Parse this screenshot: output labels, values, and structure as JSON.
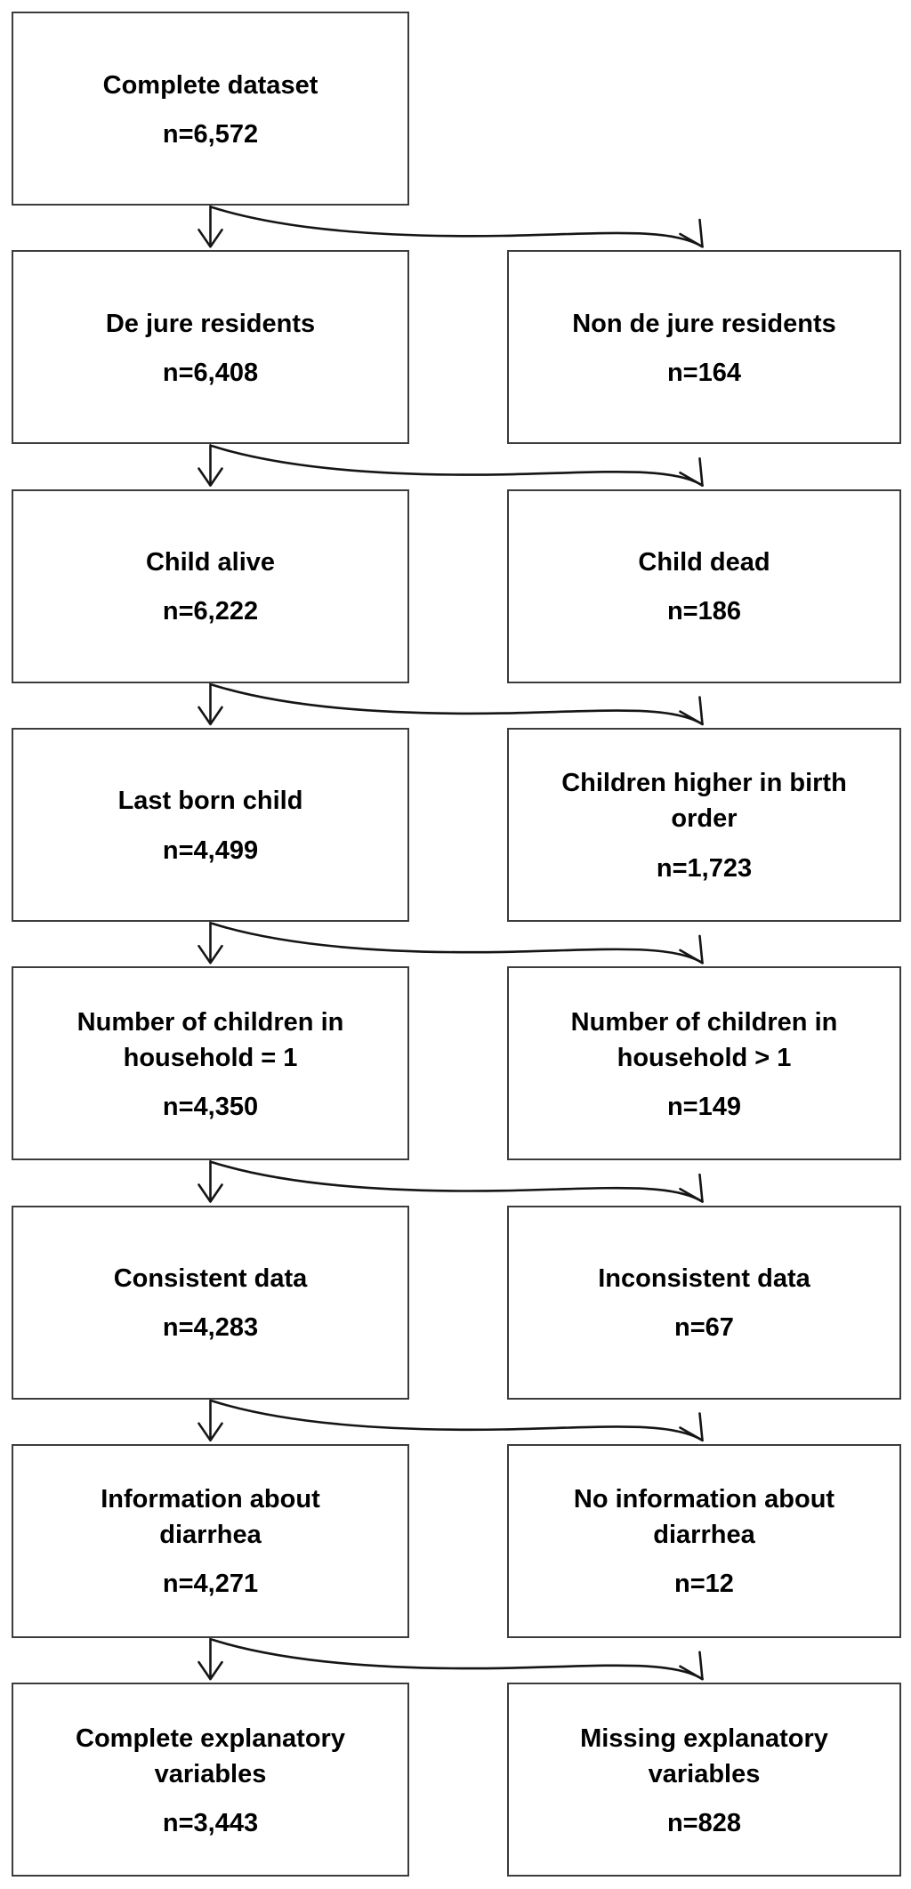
{
  "diagram": {
    "description": "Participant selection flow diagram",
    "colors": {
      "box_border": "#3c3c3c",
      "box_fill": "#ffffff",
      "text": "#000000",
      "arrow": "#151515",
      "background": "#ffffff"
    },
    "rows": [
      {
        "left": {
          "label": "Complete dataset",
          "n": "n=6,572"
        },
        "right": null
      },
      {
        "left": {
          "label": "De jure residents",
          "n": "n=6,408"
        },
        "right": {
          "label": "Non de jure residents",
          "n": "n=164"
        }
      },
      {
        "left": {
          "label": "Child alive",
          "n": "n=6,222"
        },
        "right": {
          "label": "Child dead",
          "n": "n=186"
        }
      },
      {
        "left": {
          "label": "Last born child",
          "n": "n=4,499"
        },
        "right": {
          "label": "Children higher in birth\norder",
          "n": "n=1,723"
        }
      },
      {
        "left": {
          "label": "Number of children in\nhousehold = 1",
          "n": "n=4,350"
        },
        "right": {
          "label": "Number of children in\nhousehold > 1",
          "n": "n=149"
        }
      },
      {
        "left": {
          "label": "Consistent data",
          "n": "n=4,283"
        },
        "right": {
          "label": "Inconsistent data",
          "n": "n=67"
        }
      },
      {
        "left": {
          "label": "Information about\ndiarrhea",
          "n": "n=4,271"
        },
        "right": {
          "label": "No information about\ndiarrhea",
          "n": "n=12"
        }
      },
      {
        "left": {
          "label": "Complete explanatory\nvariables",
          "n": "n=3,443"
        },
        "right": {
          "label": "Missing explanatory\nvariables",
          "n": "n=828"
        }
      }
    ]
  }
}
